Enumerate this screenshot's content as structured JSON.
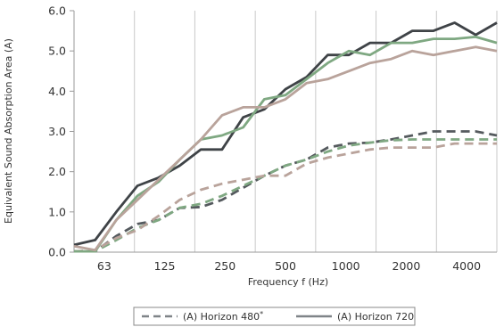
{
  "chart_data": {
    "type": "line",
    "title": "",
    "xlabel": "Frequency f (Hz)",
    "ylabel": "Equivalent Sound Absorption Area (A)",
    "ylim": [
      0,
      6
    ],
    "yticks": [
      "0.0",
      "1.0",
      "2.0",
      "3.0",
      "4.0",
      "5.0",
      "6.0"
    ],
    "xtick_labels": [
      "63",
      "125",
      "250",
      "500",
      "1000",
      "2000",
      "4000"
    ],
    "x": [
      50,
      63,
      80,
      100,
      125,
      160,
      200,
      250,
      315,
      400,
      500,
      630,
      800,
      1000,
      1250,
      1600,
      2000,
      2500,
      3150,
      4000,
      5000
    ],
    "grid": "vertical",
    "legend_position": "bottom",
    "series": [
      {
        "name": "",
        "style": "dashed",
        "color": "#555a5e",
        "values": [
          0.02,
          0.02,
          0.4,
          0.7,
          0.8,
          1.1,
          1.12,
          1.3,
          1.6,
          1.9,
          2.15,
          2.3,
          2.6,
          2.7,
          2.72,
          2.8,
          2.9,
          3.0,
          3.0,
          3.0,
          2.9
        ]
      },
      {
        "name": "(A) Horizon 480",
        "style": "dashed",
        "color": "#7fa882",
        "values": [
          0.02,
          0.02,
          0.3,
          0.6,
          0.8,
          1.1,
          1.2,
          1.4,
          1.65,
          1.9,
          2.15,
          2.3,
          2.5,
          2.65,
          2.72,
          2.78,
          2.8,
          2.8,
          2.8,
          2.8,
          2.8
        ]
      },
      {
        "name": "",
        "style": "dashed",
        "color": "#b9a39b",
        "values": [
          0.02,
          0.05,
          0.35,
          0.55,
          0.9,
          1.3,
          1.55,
          1.7,
          1.8,
          1.9,
          1.9,
          2.2,
          2.35,
          2.45,
          2.55,
          2.6,
          2.6,
          2.6,
          2.7,
          2.7,
          2.7
        ]
      },
      {
        "name": "",
        "style": "solid",
        "color": "#3f4347",
        "values": [
          0.18,
          0.3,
          1.0,
          1.65,
          1.85,
          2.15,
          2.55,
          2.55,
          3.35,
          3.55,
          4.05,
          4.35,
          4.9,
          4.9,
          5.2,
          5.2,
          5.5,
          5.5,
          5.7,
          5.4,
          5.7
        ]
      },
      {
        "name": "(A) Horizon 720",
        "style": "solid",
        "color": "#7fa882",
        "values": [
          0.02,
          0.02,
          0.8,
          1.4,
          1.75,
          2.3,
          2.8,
          2.9,
          3.1,
          3.8,
          3.9,
          4.3,
          4.7,
          5.0,
          4.9,
          5.2,
          5.2,
          5.3,
          5.3,
          5.35,
          5.2
        ]
      },
      {
        "name": "",
        "style": "solid",
        "color": "#b9a39b",
        "values": [
          0.15,
          0.05,
          0.8,
          1.3,
          1.8,
          2.3,
          2.8,
          3.4,
          3.6,
          3.6,
          3.8,
          4.2,
          4.3,
          4.5,
          4.7,
          4.8,
          5.0,
          4.9,
          5.0,
          5.1,
          5.0
        ]
      }
    ],
    "legend": [
      {
        "label": "(A) Horizon 480",
        "marker": "*",
        "style": "dashed",
        "color": "#7f8488"
      },
      {
        "label": "(A) Horizon 720",
        "marker": "",
        "style": "solid",
        "color": "#7f8488"
      }
    ]
  }
}
